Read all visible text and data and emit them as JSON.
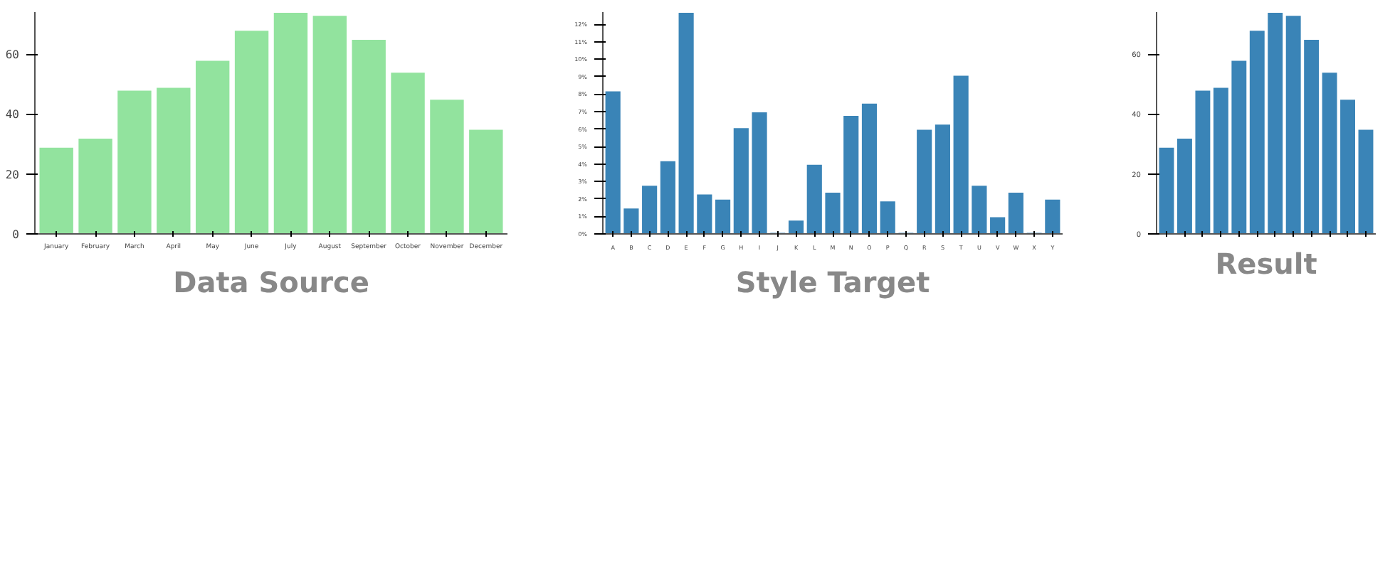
{
  "chart_data": [
    {
      "type": "bar",
      "title": "Data Source",
      "categories": [
        "January",
        "February",
        "March",
        "April",
        "May",
        "June",
        "July",
        "August",
        "September",
        "October",
        "November",
        "December"
      ],
      "values": [
        29,
        32,
        48,
        49,
        58,
        68,
        74,
        73,
        65,
        54,
        45,
        35
      ],
      "color": "#92e39e",
      "ylim": [
        0,
        74
      ],
      "yticks": [
        0,
        20,
        40,
        60
      ],
      "grid": false
    },
    {
      "type": "bar",
      "title": "Style Target",
      "categories": [
        "A",
        "B",
        "C",
        "D",
        "E",
        "F",
        "G",
        "H",
        "I",
        "J",
        "K",
        "L",
        "M",
        "N",
        "O",
        "P",
        "Q",
        "R",
        "S",
        "T",
        "U",
        "V",
        "W",
        "X",
        "Y"
      ],
      "values": [
        8.2,
        1.5,
        2.8,
        4.2,
        12.7,
        2.3,
        2.0,
        6.1,
        7.0,
        0.1,
        0.8,
        4.0,
        2.4,
        6.8,
        7.5,
        1.9,
        0.1,
        6.0,
        6.3,
        9.1,
        2.8,
        1.0,
        2.4,
        0.1,
        2.0
      ],
      "color": "#3a84b7",
      "ylim": [
        0,
        12.7
      ],
      "yticks": [
        {
          "value": 0,
          "label": "0%"
        },
        {
          "value": 1,
          "label": "1%"
        },
        {
          "value": 2,
          "label": "2%"
        },
        {
          "value": 3,
          "label": "3%"
        },
        {
          "value": 4,
          "label": "4%"
        },
        {
          "value": 5,
          "label": "5%"
        },
        {
          "value": 6,
          "label": "6%"
        },
        {
          "value": 7,
          "label": "7%"
        },
        {
          "value": 8,
          "label": "8%"
        },
        {
          "value": 9,
          "label": "9%"
        },
        {
          "value": 10,
          "label": "10%"
        },
        {
          "value": 11,
          "label": "11%"
        },
        {
          "value": 12,
          "label": "12%"
        }
      ],
      "grid": false
    },
    {
      "type": "bar",
      "title": "Result",
      "categories": [
        null,
        null,
        null,
        null,
        null,
        null,
        null,
        null,
        null,
        null,
        null,
        null
      ],
      "values": [
        29,
        32,
        48,
        49,
        58,
        68,
        74,
        73,
        65,
        54,
        45,
        35
      ],
      "color": "#3a84b7",
      "ylim": [
        0,
        74
      ],
      "yticks": [
        0,
        20,
        40,
        60
      ],
      "grid": false
    }
  ]
}
